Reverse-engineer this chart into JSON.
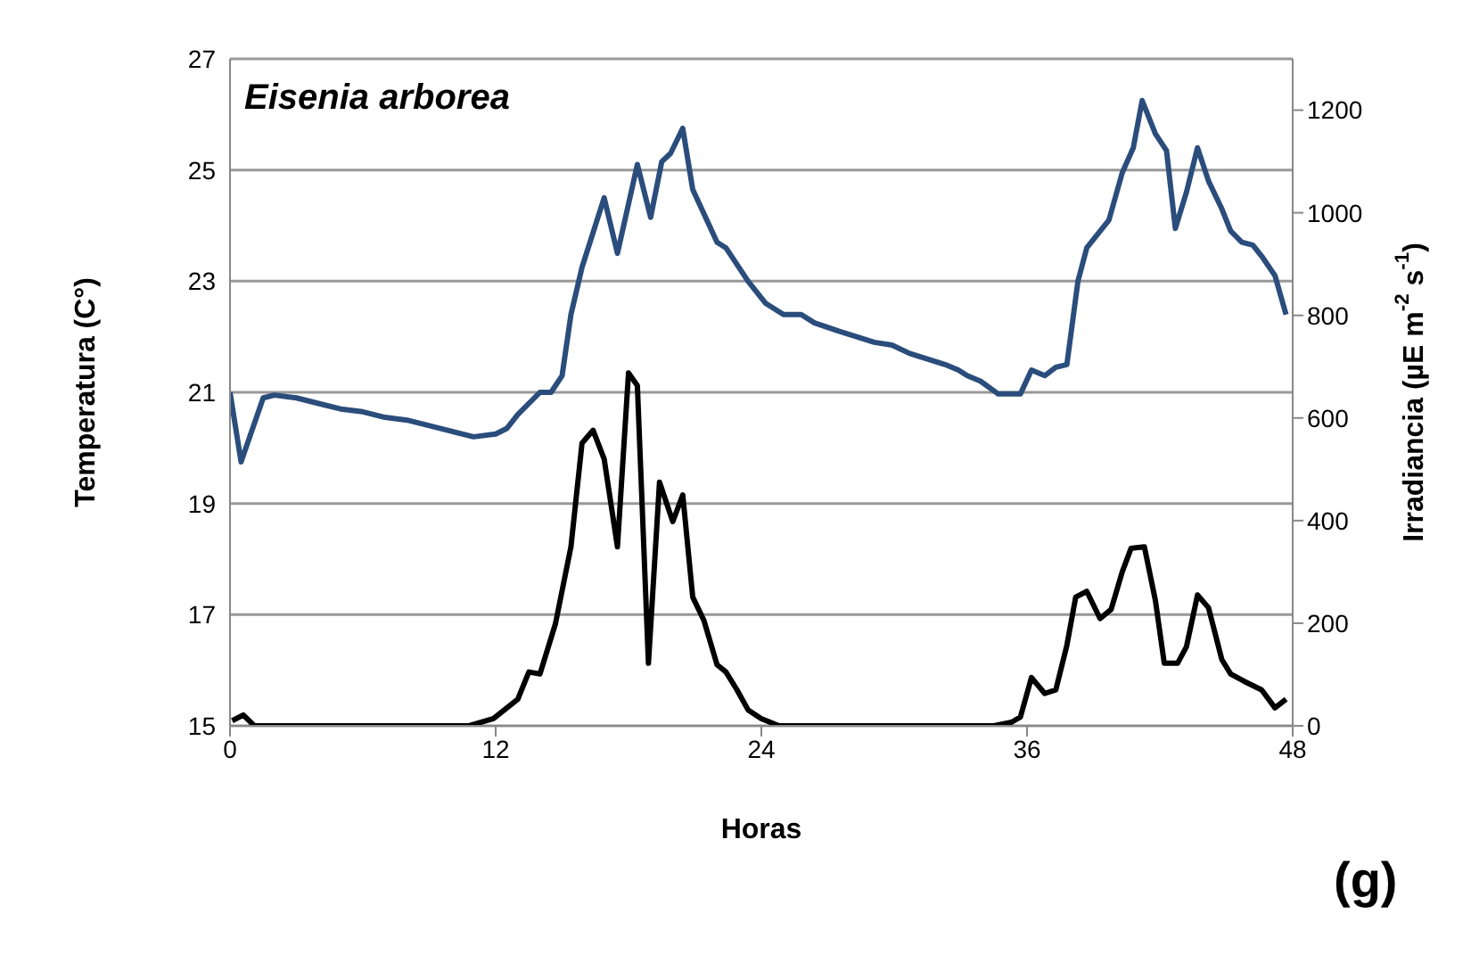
{
  "chart_data": {
    "type": "line",
    "title": "Eisenia arborea",
    "xlabel": "Horas",
    "ylabel": "Temperatura (C°)",
    "y2label": "Irradiancia (µE m$^{-2}$ s$^{-1}$)",
    "annotations": [
      "(g)"
    ],
    "xlim": [
      0,
      48
    ],
    "xticks": [
      0,
      12,
      24,
      36,
      48
    ],
    "ylim": [
      15,
      27
    ],
    "yticks": [
      15,
      17,
      19,
      21,
      23,
      25,
      27
    ],
    "y2lim": [
      0,
      1300
    ],
    "y2ticks": [
      0,
      200,
      400,
      600,
      800,
      1000,
      1200
    ],
    "grid": "y",
    "legend": false,
    "marker": "none",
    "line_style": "solid",
    "series": [
      {
        "color": "#2a4d7c",
        "x": [
          0,
          0.5,
          1.5,
          2,
          3,
          4,
          5,
          6,
          7,
          8,
          9,
          10,
          11,
          12,
          12.5,
          13,
          14,
          14.5,
          15,
          15.4,
          15.9,
          16.9,
          17.5,
          18.4,
          19.0,
          19.5,
          19.9,
          20.45,
          20.9,
          22.0,
          22.4,
          23.4,
          24.2,
          25.0,
          25.8,
          26.4,
          27.5,
          28.3,
          29.1,
          29.9,
          30.7,
          31.5,
          32.3,
          32.9,
          33.3,
          33.9,
          34.7,
          35.7,
          36.2,
          36.8,
          37.3,
          37.8,
          38.3,
          38.7,
          39.7,
          40.3,
          40.8,
          41.2,
          41.8,
          42.3,
          42.7,
          43.2,
          43.7,
          44.2,
          44.8,
          45.2,
          45.7,
          46.2,
          46.6,
          47.2,
          47.7
        ],
        "values": [
          21.0,
          19.75,
          20.9,
          20.95,
          20.9,
          20.8,
          20.7,
          20.65,
          20.55,
          20.5,
          20.4,
          20.3,
          20.2,
          20.25,
          20.35,
          20.6,
          21.0,
          21.0,
          21.3,
          22.4,
          23.25,
          24.5,
          23.5,
          25.1,
          24.15,
          25.15,
          25.3,
          25.75,
          24.65,
          23.7,
          23.6,
          23.0,
          22.6,
          22.4,
          22.4,
          22.25,
          22.1,
          22.0,
          21.9,
          21.85,
          21.7,
          21.6,
          21.5,
          21.4,
          21.3,
          21.2,
          20.97,
          20.97,
          21.4,
          21.3,
          21.45,
          21.5,
          23.0,
          23.6,
          24.1,
          24.95,
          25.4,
          26.25,
          25.65,
          25.35,
          23.95,
          24.6,
          25.4,
          24.8,
          24.3,
          23.9,
          23.7,
          23.65,
          23.45,
          23.1,
          22.4
        ]
      },
      {
        "color": "#000000",
        "axis": "y2",
        "x": [
          0.1,
          0.6,
          1.1,
          10.8,
          11.9,
          13.0,
          13.5,
          14.0,
          14.7,
          15.4,
          15.9,
          16.4,
          16.9,
          17.5,
          18.0,
          18.4,
          18.9,
          19.4,
          20.0,
          20.45,
          20.9,
          21.4,
          22.0,
          22.4,
          22.9,
          23.4,
          24.0,
          24.8,
          34.5,
          35.3,
          35.7,
          36.2,
          36.8,
          37.3,
          37.8,
          38.2,
          38.7,
          39.3,
          39.8,
          40.3,
          40.7,
          41.3,
          41.8,
          42.2,
          42.8,
          43.2,
          43.7,
          44.2,
          44.8,
          45.2,
          45.8,
          46.6,
          47.2,
          47.7
        ],
        "values": [
          10,
          21,
          0,
          0,
          14,
          52,
          105,
          101,
          199,
          349,
          551,
          576,
          520,
          349,
          688,
          663,
          122,
          475,
          398,
          450,
          251,
          206,
          119,
          105,
          70,
          31,
          14,
          0,
          0,
          7,
          17,
          94,
          63,
          70,
          157,
          251,
          262,
          209,
          227,
          300,
          346,
          349,
          244,
          122,
          122,
          154,
          255,
          230,
          129,
          101,
          87,
          70,
          35,
          52
        ]
      }
    ]
  }
}
